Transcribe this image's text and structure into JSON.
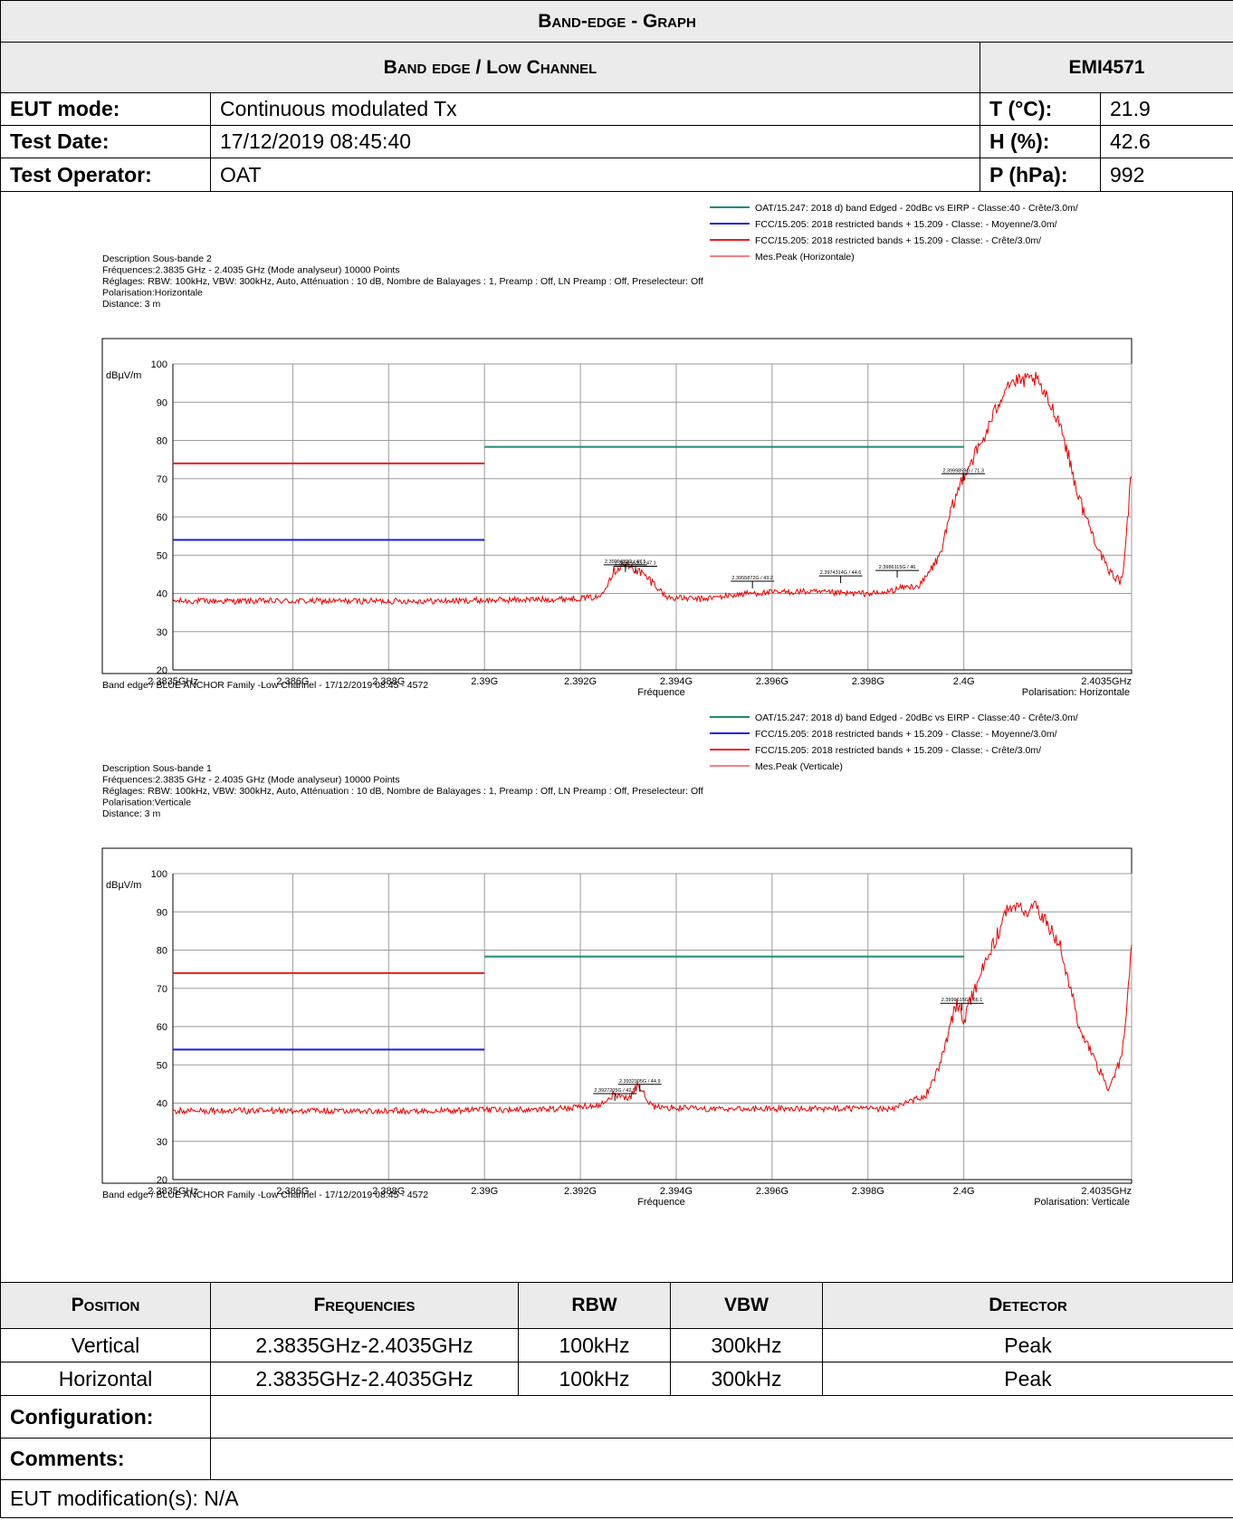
{
  "header": {
    "title": "Band-edge - Graph",
    "subtitle": "Band edge / Low Channel",
    "ref": "EMI4571"
  },
  "info": {
    "eut_mode_label": "EUT mode:",
    "eut_mode": "Continuous modulated Tx",
    "test_date_label": "Test Date:",
    "test_date": "17/12/2019 08:45:40",
    "operator_label": "Test Operator:",
    "operator": "OAT",
    "temp_label": "T (°C):",
    "temp": "21.9",
    "hum_label": "H (%):",
    "hum": "42.6",
    "press_label": "P (hPa):",
    "press": "992"
  },
  "chart_data": [
    {
      "type": "line",
      "description": [
        "Description Sous-bande 2",
        "Fréquences:2.3835 GHz - 2.4035 GHz (Mode analyseur) 10000 Points",
        "Réglages: RBW: 100kHz, VBW: 300kHz, Auto, Atténuation : 10 dB, Nombre de Balayages : 1, Preamp : Off, LN Preamp : Off, Preselecteur: Off",
        "Polarisation:Horizontale",
        "Distance: 3 m"
      ],
      "legend": [
        "OAT/15.247: 2018 d) band Edged - 20dBc vs EIRP - Classe:40 - Crête/3.0m/",
        "FCC/15.205: 2018 restricted bands + 15.209 - Classe: - Moyenne/3.0m/",
        "FCC/15.205: 2018 restricted bands + 15.209 - Classe: - Crête/3.0m/",
        "Mes.Peak (Horizontale)"
      ],
      "legend_placement": "top-right",
      "ylabel": "dBµV/m",
      "xlabel": "Fréquence",
      "polarisation_note": "Polarisation: Horizontale",
      "footer": "Band edge / BLUE ANCHOR Family -Low Channel - 17/12/2019 08:45 - 4572",
      "xlim": [
        2.3835,
        2.4035
      ],
      "ylim": [
        20,
        100
      ],
      "x_ticks": [
        "2.3835GHz",
        "2.386G",
        "2.388G",
        "2.39G",
        "2.392G",
        "2.394G",
        "2.396G",
        "2.398G",
        "2.4G",
        "2.4035GHz"
      ],
      "y_ticks": [
        "100",
        "90",
        "80",
        "70",
        "60",
        "50",
        "40",
        "30",
        "20"
      ],
      "grid": true,
      "limits": [
        {
          "name": "OAT/15.247: 2018 d) band Edged - 20dBc vs EIRP - Classe:40 - Crête/3.0m/",
          "color": "#1a8a7a",
          "x": [
            2.39,
            2.4
          ],
          "y": 78.3
        },
        {
          "name": "FCC/15.205: 2018 restricted bands + 15.209 - Classe: - Moyenne/3.0m/",
          "color": "#1a1aee",
          "x": [
            2.3835,
            2.39
          ],
          "y": 54
        },
        {
          "name": "FCC/15.205: 2018 restricted bands + 15.209 - Classe: - Crête/3.0m/",
          "color": "#ee1a1a",
          "x": [
            2.3835,
            2.39
          ],
          "y": 74
        }
      ],
      "series": [
        {
          "name": "Mes.Peak (Horizontale)",
          "color": "#ee0000",
          "x": [
            2.3835,
            2.3865,
            2.389,
            2.3915,
            2.3924,
            2.3927,
            2.3929,
            2.3932,
            2.3935,
            2.3938,
            2.3945,
            2.3955,
            2.3966,
            2.3975,
            2.3983,
            2.3987,
            2.3991,
            2.3995,
            2.39975,
            2.4,
            2.4004,
            2.4009,
            2.4015,
            2.402,
            2.4024,
            2.4027,
            2.403,
            2.4033,
            2.4035
          ],
          "y": [
            38,
            38,
            38,
            38.5,
            39,
            46,
            47.5,
            46,
            43,
            39,
            38.5,
            40,
            40.5,
            40,
            40,
            41.5,
            42,
            50,
            62,
            71.3,
            80,
            95,
            96,
            85,
            65,
            55,
            46,
            43,
            72
          ]
        }
      ],
      "markers": [
        {
          "x": 2.39294,
          "y": 47.5,
          "label": "2.3929432G / 47.5"
        },
        {
          "x": 2.39315,
          "y": 47.1,
          "label": "2.3931563G / 47.1"
        },
        {
          "x": 2.39559,
          "y": 43.2,
          "label": "2.3955872G / 43.2"
        },
        {
          "x": 2.39743,
          "y": 44.6,
          "label": "2.3974314G / 44.6"
        },
        {
          "x": 2.39861,
          "y": 46,
          "label": "2.3986115G / 46"
        },
        {
          "x": 2.39999,
          "y": 71.3,
          "label": "2.3999859G / 71.3"
        }
      ]
    },
    {
      "type": "line",
      "description": [
        "Description Sous-bande 1",
        "Fréquences:2.3835 GHz - 2.4035 GHz (Mode analyseur) 10000 Points",
        "Réglages: RBW: 100kHz, VBW: 300kHz, Auto, Atténuation : 10 dB, Nombre de Balayages : 1, Preamp : Off, LN Preamp : Off, Preselecteur: Off",
        "Polarisation:Verticale",
        "Distance: 3 m"
      ],
      "legend": [
        "OAT/15.247: 2018 d) band Edged - 20dBc vs EIRP - Classe:40 - Crête/3.0m/",
        "FCC/15.205: 2018 restricted bands + 15.209 - Classe: - Moyenne/3.0m/",
        "FCC/15.205: 2018 restricted bands + 15.209 - Classe: - Crête/3.0m/",
        "Mes.Peak (Verticale)"
      ],
      "legend_placement": "top-right",
      "ylabel": "dBµV/m",
      "xlabel": "Fréquence",
      "polarisation_note": "Polarisation: Verticale",
      "footer": "Band edge / BLUE ANCHOR Family -Low Channel - 17/12/2019 08:45 - 4572",
      "xlim": [
        2.3835,
        2.4035
      ],
      "ylim": [
        20,
        100
      ],
      "x_ticks": [
        "2.3835GHz",
        "2.386G",
        "2.388G",
        "2.39G",
        "2.392G",
        "2.394G",
        "2.396G",
        "2.398G",
        "2.4G",
        "2.4035GHz"
      ],
      "y_ticks": [
        "100",
        "90",
        "80",
        "70",
        "60",
        "50",
        "40",
        "30",
        "20"
      ],
      "grid": true,
      "limits": [
        {
          "name": "OAT/15.247: 2018 d) band Edged - 20dBc vs EIRP - Classe:40 - Crête/3.0m/",
          "color": "#1a8a7a",
          "x": [
            2.39,
            2.4
          ],
          "y": 78.3
        },
        {
          "name": "FCC/15.205: 2018 restricted bands + 15.209 - Classe: - Moyenne/3.0m/",
          "color": "#1a1aee",
          "x": [
            2.3835,
            2.39
          ],
          "y": 54
        },
        {
          "name": "FCC/15.205: 2018 restricted bands + 15.209 - Classe: - Crête/3.0m/",
          "color": "#ee1a1a",
          "x": [
            2.3835,
            2.39
          ],
          "y": 74
        }
      ],
      "series": [
        {
          "name": "Mes.Peak (Verticale)",
          "color": "#ee0000",
          "x": [
            2.3835,
            2.3865,
            2.389,
            2.3915,
            2.3924,
            2.3927,
            2.393,
            2.3932,
            2.3935,
            2.3945,
            2.3965,
            2.3985,
            2.3992,
            2.3995,
            2.39985,
            2.4,
            2.4004,
            2.4009,
            2.4015,
            2.402,
            2.4024,
            2.4027,
            2.403,
            2.4033,
            2.4035
          ],
          "y": [
            38,
            38,
            38,
            38.5,
            39.5,
            42.5,
            41,
            44.9,
            39,
            38.5,
            38.5,
            38.5,
            42,
            50,
            66,
            62,
            75,
            90,
            91,
            82,
            60,
            52,
            44,
            52,
            81
          ]
        }
      ],
      "markers": [
        {
          "x": 2.39272,
          "y": 42.5,
          "label": "2.3927205G / 42.5"
        },
        {
          "x": 2.39324,
          "y": 44.9,
          "label": "2.3932305G / 44.9"
        },
        {
          "x": 2.39996,
          "y": 66.1,
          "label": "2.3999615G / 66.1"
        }
      ]
    }
  ],
  "summary": {
    "headers": [
      "Position",
      "Frequencies",
      "RBW",
      "VBW",
      "Detector"
    ],
    "rows": [
      [
        "Vertical",
        "2.3835GHz-2.4035GHz",
        "100kHz",
        "300kHz",
        "Peak"
      ],
      [
        "Horizontal",
        "2.3835GHz-2.4035GHz",
        "100kHz",
        "300kHz",
        "Peak"
      ]
    ],
    "configuration_label": "Configuration:",
    "configuration": "",
    "comments_label": "Comments:",
    "comments": "",
    "modification": "EUT modification(s): N/A"
  }
}
